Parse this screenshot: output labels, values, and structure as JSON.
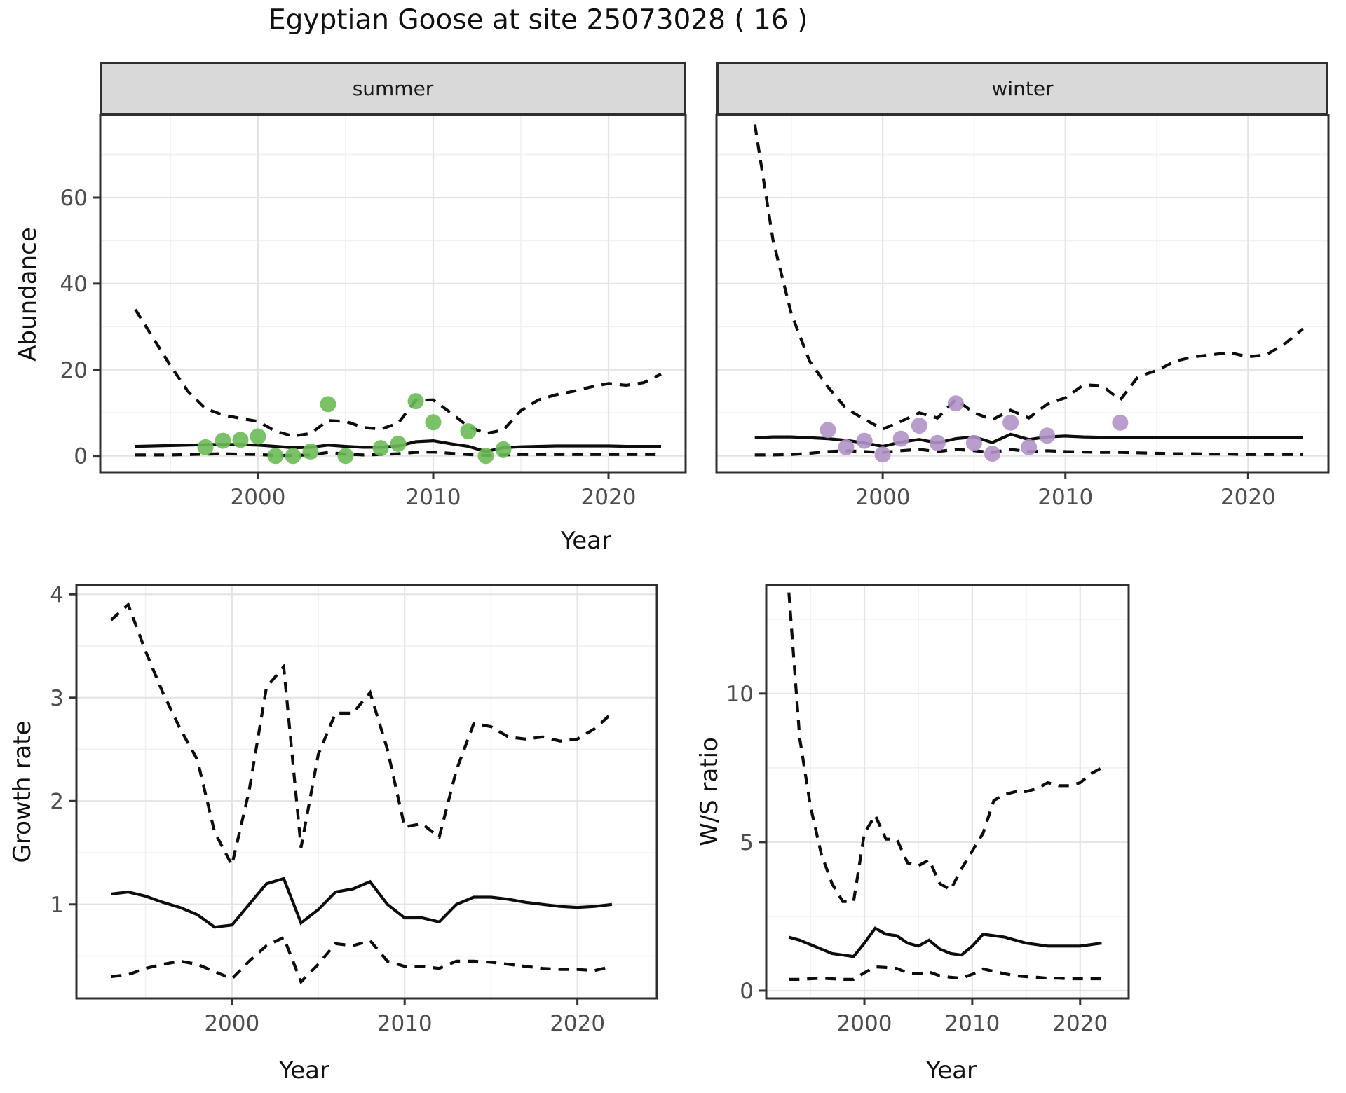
{
  "title": "Egyptian Goose at site 25073028 ( 16 )",
  "facets": {
    "summer_label": "summer",
    "winter_label": "winter"
  },
  "axes": {
    "abundance_label": "Abundance",
    "year_label_top": "Year",
    "growth_label": "Growth rate",
    "ws_label": "W/S ratio",
    "year_label_bottom_left": "Year",
    "year_label_bottom_right": "Year"
  },
  "colors": {
    "summer_point": "#6cba58",
    "winter_point": "#b192c6",
    "line": "#0d0d0d",
    "strip_bg": "#d9d9d9",
    "panel_border": "#2f2f2f",
    "grid_major": "#e4e4e4",
    "grid_minor": "#f0f0f0",
    "tick_text": "#4d4d4d",
    "tick_mark": "#333333"
  },
  "chart_data": [
    {
      "id": "abundance-summer",
      "type": "line",
      "facet": "summer",
      "xlabel": "Year",
      "ylabel": "Abundance",
      "x_domain": [
        1991.0,
        2024.4
      ],
      "y_domain": [
        -3.8,
        79.2
      ],
      "x_ticks": [
        2000,
        2010,
        2020
      ],
      "x_minor": [
        1995,
        2005,
        2015
      ],
      "y_ticks": [
        0,
        20,
        40,
        60
      ],
      "y_minor": [
        10,
        30,
        50,
        70
      ],
      "years": [
        1993,
        1994,
        1995,
        1996,
        1997,
        1998,
        1999,
        2000,
        2001,
        2002,
        2003,
        2004,
        2005,
        2006,
        2007,
        2008,
        2009,
        2010,
        2011,
        2012,
        2013,
        2014,
        2015,
        2016,
        2017,
        2018,
        2019,
        2020,
        2021,
        2022,
        2023
      ],
      "series": [
        {
          "name": "upper_ci",
          "style": "dashed",
          "values": [
            34,
            27.5,
            21,
            15,
            11,
            9.5,
            8.7,
            8,
            5.7,
            4.6,
            5.2,
            8.2,
            8,
            6.6,
            6.2,
            7.6,
            12.9,
            13,
            10,
            6.8,
            5.2,
            6,
            10.5,
            13,
            14.2,
            15,
            16,
            16.8,
            16.4,
            17,
            19
          ]
        },
        {
          "name": "mean",
          "style": "solid",
          "values": [
            2.2,
            2.3,
            2.4,
            2.5,
            2.6,
            2.7,
            2.6,
            2.5,
            2.2,
            1.9,
            2.0,
            2.5,
            2.2,
            2.0,
            2.0,
            2.3,
            3.3,
            3.5,
            2.8,
            2.2,
            1.0,
            1.9,
            2.1,
            2.2,
            2.3,
            2.3,
            2.3,
            2.3,
            2.2,
            2.2,
            2.2
          ]
        },
        {
          "name": "lower_ci",
          "style": "dashed",
          "values": [
            0.2,
            0.2,
            0.2,
            0.3,
            0.4,
            0.5,
            0.4,
            0.3,
            0.1,
            0.1,
            0.2,
            0.8,
            0.4,
            0.2,
            0.3,
            0.5,
            0.8,
            0.9,
            0.6,
            0.3,
            0.1,
            0.2,
            0.3,
            0.3,
            0.3,
            0.3,
            0.3,
            0.3,
            0.3,
            0.3,
            0.3
          ]
        }
      ],
      "points": [
        [
          1997,
          2
        ],
        [
          1998,
          3.5
        ],
        [
          1999,
          3.7
        ],
        [
          2000,
          4.5
        ],
        [
          2001,
          0
        ],
        [
          2002,
          0
        ],
        [
          2003,
          1
        ],
        [
          2004,
          12
        ],
        [
          2005,
          0
        ],
        [
          2007,
          1.8
        ],
        [
          2008,
          2.8
        ],
        [
          2009,
          12.7
        ],
        [
          2010,
          7.8
        ],
        [
          2012,
          5.7
        ],
        [
          2013,
          0
        ],
        [
          2014,
          1.5
        ]
      ],
      "point_color": "#6cba58"
    },
    {
      "id": "abundance-winter",
      "type": "line",
      "facet": "winter",
      "xlabel": "Year",
      "ylabel": "Abundance",
      "x_domain": [
        1990.9,
        2024.4
      ],
      "y_domain": [
        -3.8,
        79.2
      ],
      "x_ticks": [
        2000,
        2010,
        2020
      ],
      "x_minor": [
        1995,
        2005,
        2015
      ],
      "y_ticks": [
        0,
        20,
        40,
        60
      ],
      "y_minor": [
        10,
        30,
        50,
        70
      ],
      "years": [
        1993,
        1994,
        1995,
        1996,
        1997,
        1998,
        1999,
        2000,
        2001,
        2002,
        2003,
        2004,
        2005,
        2006,
        2007,
        2008,
        2009,
        2010,
        2011,
        2012,
        2013,
        2014,
        2015,
        2016,
        2017,
        2018,
        2019,
        2020,
        2021,
        2022,
        2023
      ],
      "series": [
        {
          "name": "upper_ci",
          "style": "dashed",
          "values": [
            77,
            50,
            33,
            22,
            16,
            11,
            8.5,
            6.2,
            8,
            10,
            8.8,
            13.1,
            10,
            8.4,
            10.6,
            8.8,
            12,
            13.5,
            16.5,
            16.3,
            13,
            18.5,
            19.8,
            22,
            23,
            23.5,
            24,
            23,
            23.5,
            26,
            29.5
          ]
        },
        {
          "name": "mean",
          "style": "solid",
          "values": [
            4.2,
            4.4,
            4.4,
            4.2,
            4.0,
            3.6,
            3.0,
            2.2,
            3.2,
            3.8,
            3.0,
            4.0,
            4.4,
            3.1,
            5.0,
            3.8,
            4.4,
            4.6,
            4.4,
            4.3,
            4.3,
            4.3,
            4.3,
            4.3,
            4.3,
            4.3,
            4.3,
            4.3,
            4.3,
            4.3,
            4.3
          ]
        },
        {
          "name": "lower_ci",
          "style": "dashed",
          "values": [
            0.2,
            0.2,
            0.3,
            0.6,
            1.0,
            1.2,
            1.0,
            0.8,
            1.2,
            1.5,
            1.0,
            1.5,
            1.2,
            0.8,
            1.5,
            1.0,
            1.2,
            1.0,
            0.9,
            0.8,
            0.8,
            0.7,
            0.6,
            0.5,
            0.5,
            0.4,
            0.4,
            0.3,
            0.3,
            0.3,
            0.3
          ]
        }
      ],
      "points": [
        [
          1997,
          6
        ],
        [
          1998,
          2
        ],
        [
          1999,
          3.5
        ],
        [
          2000,
          0.3
        ],
        [
          2001,
          4
        ],
        [
          2002,
          7
        ],
        [
          2003,
          3
        ],
        [
          2004,
          12.2
        ],
        [
          2005,
          3
        ],
        [
          2006,
          0.5
        ],
        [
          2007,
          7.7
        ],
        [
          2008,
          2
        ],
        [
          2009,
          4.7
        ],
        [
          2013,
          7.7
        ]
      ],
      "point_color": "#b192c6"
    },
    {
      "id": "growth-rate",
      "type": "line",
      "facet": null,
      "xlabel": "Year",
      "ylabel": "Growth rate",
      "x_domain": [
        1991.0,
        2024.6
      ],
      "y_domain": [
        0.09,
        4.09
      ],
      "x_ticks": [
        2000,
        2010,
        2020
      ],
      "x_minor": [
        1995,
        2005,
        2015
      ],
      "y_ticks": [
        1,
        2,
        3,
        4
      ],
      "y_minor": [
        0.5,
        1.5,
        2.5,
        3.5
      ],
      "years": [
        1993,
        1994,
        1995,
        1996,
        1997,
        1998,
        1999,
        2000,
        2001,
        2002,
        2003,
        2004,
        2005,
        2006,
        2007,
        2008,
        2009,
        2010,
        2011,
        2012,
        2013,
        2014,
        2015,
        2016,
        2017,
        2018,
        2019,
        2020,
        2021,
        2022
      ],
      "series": [
        {
          "name": "upper_ci",
          "style": "dashed",
          "values": [
            3.75,
            3.9,
            3.45,
            3.05,
            2.7,
            2.4,
            1.7,
            1.38,
            2.1,
            3.1,
            3.3,
            1.55,
            2.45,
            2.85,
            2.85,
            3.05,
            2.5,
            1.75,
            1.78,
            1.65,
            2.3,
            2.75,
            2.72,
            2.62,
            2.6,
            2.62,
            2.58,
            2.6,
            2.7,
            2.85
          ]
        },
        {
          "name": "mean",
          "style": "solid",
          "values": [
            1.1,
            1.12,
            1.08,
            1.02,
            0.97,
            0.9,
            0.78,
            0.8,
            1.0,
            1.2,
            1.25,
            0.82,
            0.95,
            1.12,
            1.15,
            1.22,
            1.0,
            0.87,
            0.87,
            0.83,
            1.0,
            1.07,
            1.07,
            1.05,
            1.02,
            1.0,
            0.98,
            0.97,
            0.98,
            1.0
          ]
        },
        {
          "name": "lower_ci",
          "style": "dashed",
          "values": [
            0.3,
            0.32,
            0.38,
            0.42,
            0.45,
            0.42,
            0.35,
            0.28,
            0.45,
            0.6,
            0.68,
            0.25,
            0.42,
            0.62,
            0.6,
            0.65,
            0.45,
            0.4,
            0.4,
            0.38,
            0.45,
            0.45,
            0.44,
            0.42,
            0.4,
            0.38,
            0.37,
            0.37,
            0.36,
            0.4
          ]
        }
      ],
      "points": [],
      "point_color": null
    },
    {
      "id": "ws-ratio",
      "type": "line",
      "facet": null,
      "xlabel": "Year",
      "ylabel": "W/S ratio",
      "x_domain": [
        1990.9,
        2024.5
      ],
      "y_domain": [
        -0.26,
        13.65
      ],
      "x_ticks": [
        2000,
        2010,
        2020
      ],
      "x_minor": [
        1995,
        2005,
        2015
      ],
      "y_ticks": [
        0,
        5,
        10
      ],
      "y_minor": [
        2.5,
        7.5,
        12.5
      ],
      "years": [
        1993,
        1994,
        1995,
        1996,
        1997,
        1998,
        1999,
        2000,
        2001,
        2002,
        2003,
        2004,
        2005,
        2006,
        2007,
        2008,
        2009,
        2010,
        2011,
        2012,
        2013,
        2014,
        2015,
        2016,
        2017,
        2018,
        2019,
        2020,
        2021,
        2022
      ],
      "series": [
        {
          "name": "upper_ci",
          "style": "dashed",
          "values": [
            13.4,
            8.5,
            6.2,
            4.6,
            3.6,
            3.0,
            3.0,
            5.3,
            5.9,
            5.1,
            5.1,
            4.3,
            4.2,
            4.4,
            3.6,
            3.4,
            4.1,
            4.7,
            5.3,
            6.4,
            6.6,
            6.7,
            6.7,
            6.8,
            7.0,
            6.9,
            6.9,
            7.0,
            7.3,
            7.5
          ]
        },
        {
          "name": "mean",
          "style": "solid",
          "values": [
            1.8,
            1.7,
            1.55,
            1.4,
            1.25,
            1.2,
            1.15,
            1.6,
            2.1,
            1.9,
            1.85,
            1.6,
            1.5,
            1.7,
            1.4,
            1.25,
            1.2,
            1.5,
            1.9,
            1.85,
            1.8,
            1.7,
            1.6,
            1.55,
            1.5,
            1.5,
            1.5,
            1.5,
            1.55,
            1.6
          ]
        },
        {
          "name": "lower_ci",
          "style": "dashed",
          "values": [
            0.38,
            0.38,
            0.4,
            0.42,
            0.4,
            0.38,
            0.38,
            0.6,
            0.8,
            0.78,
            0.75,
            0.6,
            0.57,
            0.63,
            0.5,
            0.45,
            0.42,
            0.55,
            0.73,
            0.65,
            0.57,
            0.5,
            0.47,
            0.45,
            0.42,
            0.42,
            0.4,
            0.4,
            0.4,
            0.4
          ]
        }
      ],
      "points": [],
      "point_color": null
    }
  ]
}
